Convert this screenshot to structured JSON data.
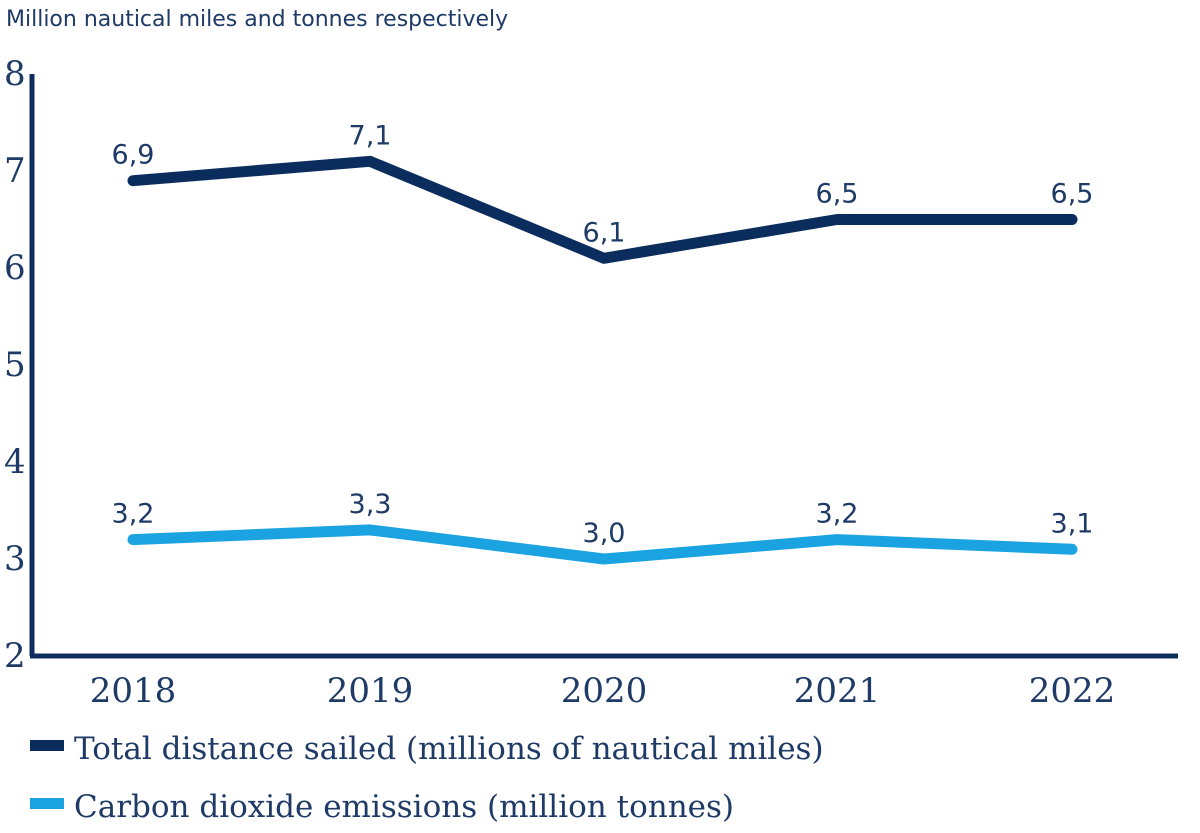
{
  "chart_data": {
    "type": "line",
    "units_label": "Million nautical miles and tonnes respectively",
    "categories": [
      "2018",
      "2019",
      "2020",
      "2021",
      "2022"
    ],
    "ylim": [
      2,
      8
    ],
    "yticks": [
      "2",
      "3",
      "4",
      "5",
      "6",
      "7",
      "8"
    ],
    "grid": false,
    "legend_placement": "bottom-left",
    "series": [
      {
        "name": "Total distance sailed (millions of nautical miles)",
        "values": [
          6.9,
          7.1,
          6.1,
          6.5,
          6.5
        ],
        "labels": [
          "6,9",
          "7,1",
          "6,1",
          "6,5",
          "6,5"
        ],
        "color": "#0b2d5e"
      },
      {
        "name": "Carbon dioxide emissions (million tonnes)",
        "values": [
          3.2,
          3.3,
          3.0,
          3.2,
          3.1
        ],
        "labels": [
          "3,2",
          "3,3",
          "3,0",
          "3,2",
          "3,1"
        ],
        "color": "#1aa3e0"
      }
    ],
    "axis_color": "#0b2d5e"
  }
}
